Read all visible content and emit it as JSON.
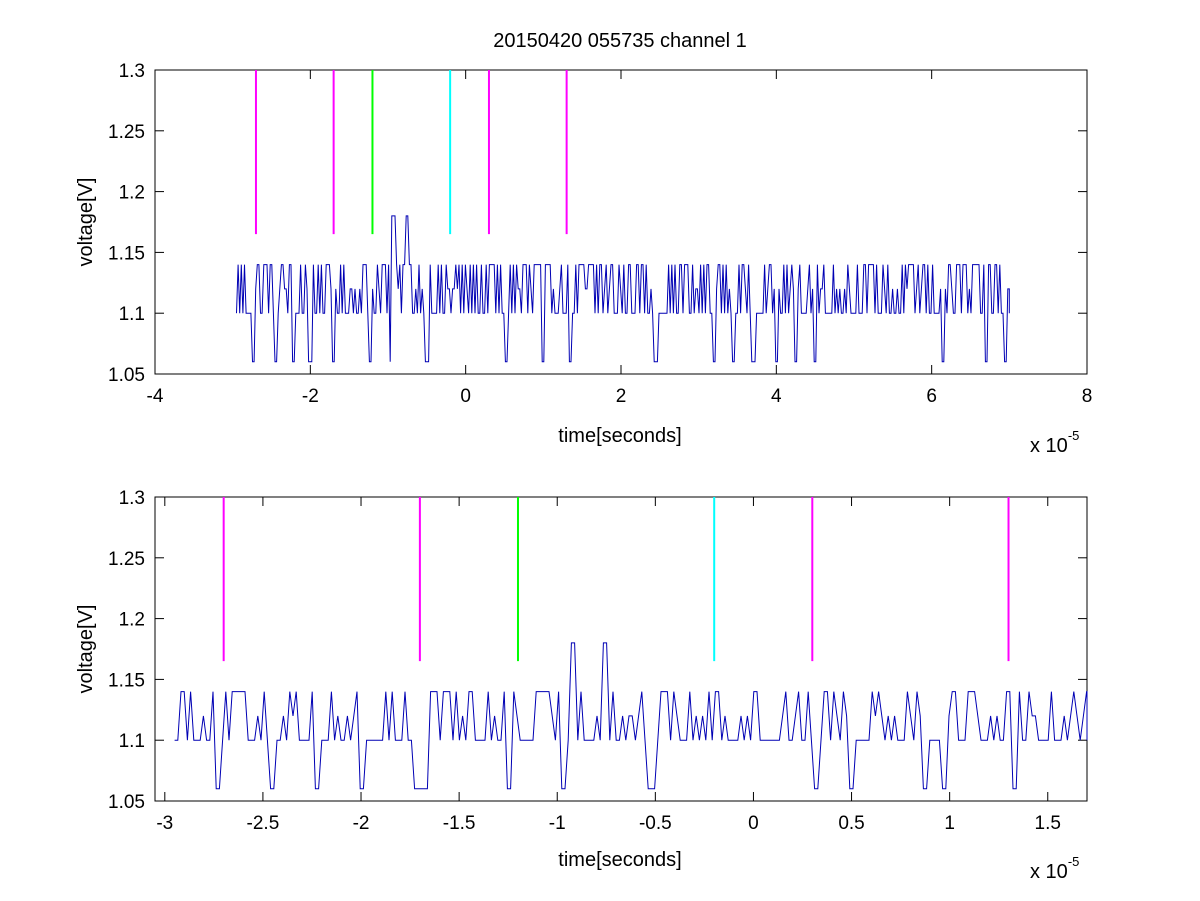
{
  "figure": {
    "title": "20150420 055735 channel 1"
  },
  "chart_data": [
    {
      "type": "line",
      "title": "20150420 055735 channel 1",
      "xlabel": "time[seconds]",
      "ylabel": "voltage[V]",
      "x_exponent": "x 10",
      "x_exponent_power": "-5",
      "xlim": [
        -4,
        8
      ],
      "ylim": [
        1.05,
        1.3
      ],
      "xticks": [
        -4,
        -2,
        0,
        2,
        4,
        6,
        8
      ],
      "xtick_labels": [
        "-4",
        "-2",
        "0",
        "2",
        "4",
        "6",
        "8"
      ],
      "yticks": [
        1.05,
        1.1,
        1.15,
        1.2,
        1.25,
        1.3
      ],
      "ytick_labels": [
        "1.05",
        "1.1",
        "1.15",
        "1.2",
        "1.25",
        "1.3"
      ],
      "grid": false,
      "signal": {
        "color": "#0000b4",
        "x_range": [
          -2.95,
          7.0
        ],
        "baseline": 1.1,
        "high_level": 1.14,
        "mid_level": 1.12,
        "low_level": 1.06,
        "peak_level": 1.18,
        "dips": [
          -2.73,
          -2.45,
          -2.22,
          -2.0,
          -1.7,
          -1.23,
          -0.95,
          -0.5,
          0.52,
          1.0,
          1.35,
          2.45,
          3.2,
          3.45,
          3.7,
          4.0,
          4.25,
          4.5,
          6.15,
          6.7,
          6.95
        ],
        "peaks": [
          -0.93,
          -0.76
        ]
      },
      "markers": [
        {
          "x": -2.7,
          "y_from": 1.165,
          "y_to": 1.3,
          "color": "#ff00ff"
        },
        {
          "x": -1.7,
          "y_from": 1.165,
          "y_to": 1.3,
          "color": "#ff00ff"
        },
        {
          "x": -1.2,
          "y_from": 1.165,
          "y_to": 1.3,
          "color": "#00ff00"
        },
        {
          "x": -0.2,
          "y_from": 1.165,
          "y_to": 1.3,
          "color": "#00ffff"
        },
        {
          "x": 0.3,
          "y_from": 1.165,
          "y_to": 1.3,
          "color": "#ff00ff"
        },
        {
          "x": 1.3,
          "y_from": 1.165,
          "y_to": 1.3,
          "color": "#ff00ff"
        }
      ]
    },
    {
      "type": "line",
      "title": "",
      "xlabel": "time[seconds]",
      "ylabel": "voltage[V]",
      "x_exponent": "x 10",
      "x_exponent_power": "-5",
      "xlim": [
        -3.05,
        1.7
      ],
      "ylim": [
        1.05,
        1.3
      ],
      "xticks": [
        -3,
        -2.5,
        -2,
        -1.5,
        -1,
        -0.5,
        0,
        0.5,
        1,
        1.5
      ],
      "xtick_labels": [
        "-3",
        "-2.5",
        "-2",
        "-1.5",
        "-1",
        "-0.5",
        "0",
        "0.5",
        "1",
        "1.5"
      ],
      "yticks": [
        1.05,
        1.1,
        1.15,
        1.2,
        1.25,
        1.3
      ],
      "ytick_labels": [
        "1.05",
        "1.1",
        "1.15",
        "1.2",
        "1.25",
        "1.3"
      ],
      "grid": false,
      "signal": {
        "color": "#0000b4",
        "x_range": [
          -2.95,
          1.7
        ],
        "baseline": 1.1,
        "high_level": 1.14,
        "mid_level": 1.12,
        "low_level": 1.06,
        "peak_level": 1.18,
        "dips": [
          -2.73,
          -2.45,
          -2.22,
          -2.0,
          -1.72,
          -1.68,
          -1.25,
          -0.97,
          -0.52,
          0.32,
          0.5,
          0.87,
          0.97,
          1.33
        ],
        "peaks": [
          -0.92,
          -0.76
        ]
      },
      "markers": [
        {
          "x": -2.7,
          "y_from": 1.165,
          "y_to": 1.3,
          "color": "#ff00ff"
        },
        {
          "x": -1.7,
          "y_from": 1.165,
          "y_to": 1.3,
          "color": "#ff00ff"
        },
        {
          "x": -1.2,
          "y_from": 1.165,
          "y_to": 1.3,
          "color": "#00ff00"
        },
        {
          "x": -0.2,
          "y_from": 1.165,
          "y_to": 1.3,
          "color": "#00ffff"
        },
        {
          "x": 0.3,
          "y_from": 1.165,
          "y_to": 1.3,
          "color": "#ff00ff"
        },
        {
          "x": 1.3,
          "y_from": 1.165,
          "y_to": 1.3,
          "color": "#ff00ff"
        }
      ]
    }
  ]
}
